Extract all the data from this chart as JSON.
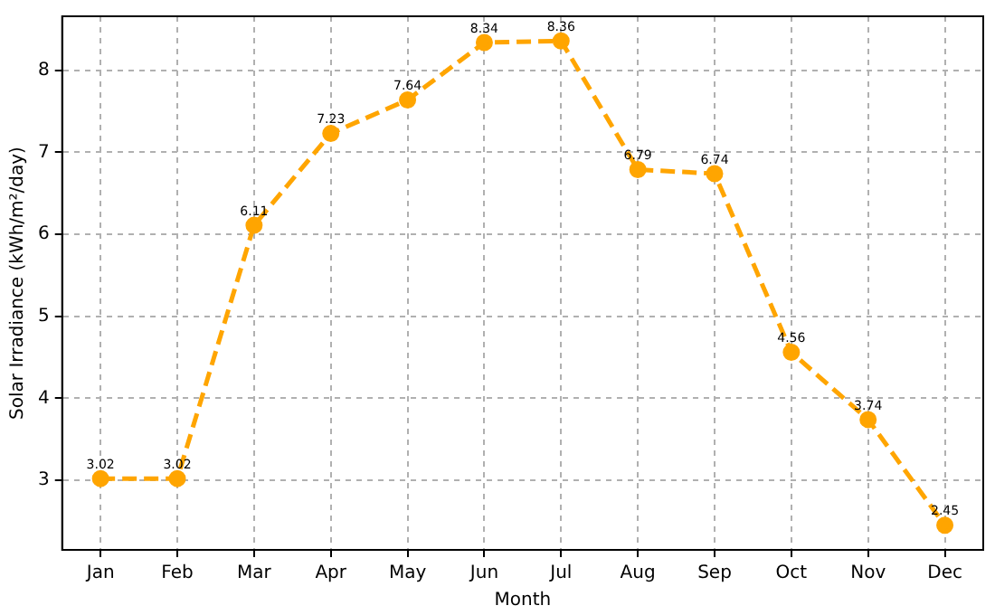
{
  "chart_data": {
    "type": "line",
    "xlabel": "Month",
    "ylabel": "Solar Irradiance (kWh/m²/day)",
    "categories": [
      "Jan",
      "Feb",
      "Mar",
      "Apr",
      "May",
      "Jun",
      "Jul",
      "Aug",
      "Sep",
      "Oct",
      "Nov",
      "Dec"
    ],
    "series": [
      {
        "color": "#ffa500",
        "values": [
          3.02,
          3.02,
          6.11,
          7.23,
          7.64,
          8.34,
          8.36,
          6.79,
          6.74,
          4.56,
          3.74,
          2.45
        ]
      }
    ],
    "ylim": [
      2.15,
      8.66
    ],
    "yticks": [
      3,
      4,
      5,
      6,
      7,
      8
    ],
    "grid": true,
    "legend": false,
    "marker": "circle",
    "line_style": "dashed",
    "data_labels": true
  }
}
